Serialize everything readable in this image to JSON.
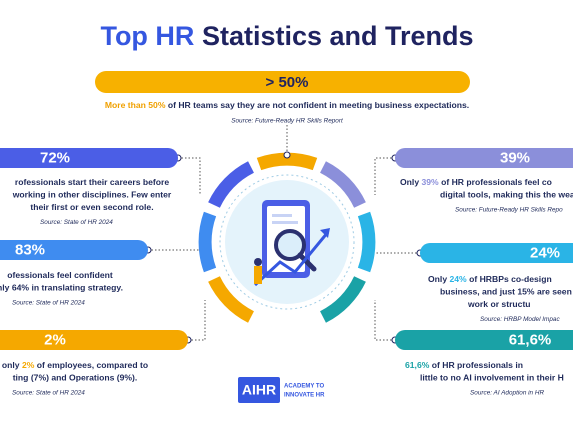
{
  "title": {
    "lead": "Top HR",
    "rest": "Statistics and Trends"
  },
  "top": {
    "value": "> 50%",
    "lines": [
      [
        "",
        "More than 50%",
        " of HR teams say they are not confident in meeting business expectations."
      ]
    ],
    "source": "Source: Future-Ready HR Skills Report"
  },
  "stats": [
    {
      "value": "72%",
      "color": "#4b5ee6",
      "lines": [
        [
          "rofessionals start their careers before"
        ],
        [
          "working in other disciplines. Few enter"
        ],
        [
          "their first or even second role."
        ]
      ],
      "source": "Source: State of HR 2024"
    },
    {
      "value": "83%",
      "color": "#3f8cf0",
      "lines": [
        [
          "ofessionals feel confident"
        ],
        [
          "nly 64% in translating strategy."
        ]
      ],
      "source": "Source: State of HR 2024"
    },
    {
      "value": "2%",
      "color": "#f5a800",
      "lines": [
        [
          "only ",
          "2%",
          " of employees, compared to"
        ],
        [
          "ting (7%) and Operations (9%)."
        ]
      ],
      "source": "Source: State of HR 2024"
    },
    {
      "value": "39%",
      "color": "#8b8fda",
      "lines": [
        [
          "Only ",
          "39%",
          " of HR professionals feel co"
        ],
        [
          "digital tools, making this the weake"
        ]
      ],
      "source": "Source: Future-Ready HR Skills Repo"
    },
    {
      "value": "24%",
      "color": "#2ab4e6",
      "lines": [
        [
          "Only ",
          "24%",
          " of HRBPs co-design"
        ],
        [
          "business, and just 15% are seen"
        ],
        [
          "work or structu"
        ]
      ],
      "source": "Source: HRBP Model Impac"
    },
    {
      "value": "61,6%",
      "color": "#1aa2a6",
      "lines": [
        [
          "",
          "61,6%",
          " of HR professionals in"
        ],
        [
          "little to no AI involvement in their H"
        ]
      ],
      "source": "Source: AI Adoption in HR"
    }
  ],
  "logo": {
    "mark": "AIHR",
    "line1": "ACADEMY TO",
    "line2": "INNOVATE HR"
  }
}
